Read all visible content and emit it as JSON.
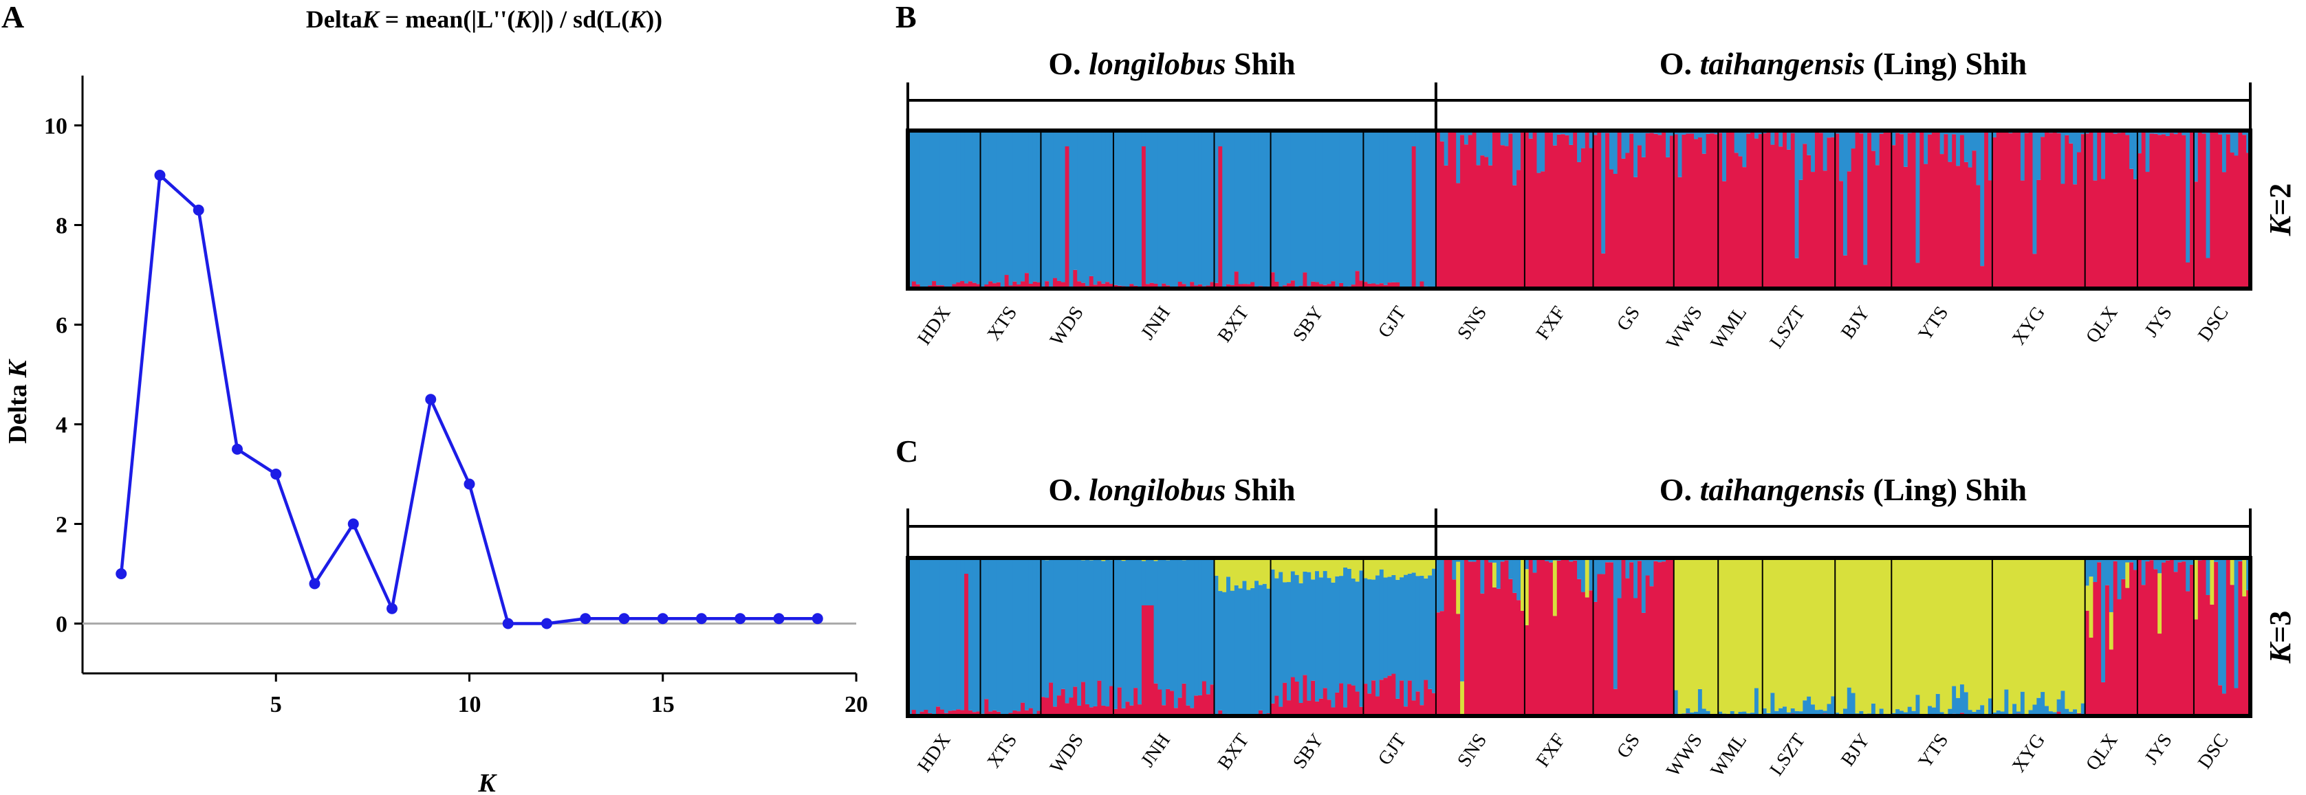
{
  "panel_letters": {
    "a": "A",
    "b": "B",
    "c": "C"
  },
  "colors": {
    "line": "#1c1ce6",
    "zero_line": "#aaaaaa",
    "blue": "#2a8fd0",
    "red": "#e2184a",
    "yellow": "#d8e03c",
    "frame": "#000000"
  },
  "chart_data": [
    {
      "type": "line",
      "panel": "A",
      "title": {
        "pre": "Delta",
        "k1": "K",
        "mid1": " = mean(|L''(",
        "k2": "K",
        "mid2": ")|) / sd(L(",
        "k3": "K",
        "post": "))"
      },
      "xlabel": "K",
      "ylabel": {
        "pre": "Delta ",
        "k": "K"
      },
      "xlim": [
        0,
        20
      ],
      "ylim": [
        -1,
        11
      ],
      "xticks": [
        5,
        10,
        15,
        20
      ],
      "yticks": [
        0,
        2,
        4,
        6,
        8,
        10
      ],
      "x": [
        1,
        2,
        3,
        4,
        5,
        6,
        7,
        8,
        9,
        10,
        11,
        12,
        13,
        14,
        15,
        16,
        17,
        18,
        19
      ],
      "y": [
        1.0,
        9.0,
        8.3,
        3.5,
        3.0,
        0.8,
        2.0,
        0.3,
        4.5,
        2.8,
        0.0,
        0.0,
        0.1,
        0.1,
        0.1,
        0.1,
        0.1,
        0.1,
        0.1
      ]
    },
    {
      "type": "stacked-bar",
      "panel": "B",
      "k_label": {
        "k": "K",
        "eq": "=2"
      },
      "clusters": 2,
      "species": [
        {
          "prefix": "O. ",
          "italic": "longilobus",
          "suffix": " Shih",
          "populations": 7
        },
        {
          "prefix": "O. ",
          "italic": "taihangensis",
          "suffix": " (Ling) Shih",
          "populations": 12
        }
      ],
      "populations": [
        {
          "name": "HDX",
          "n": 18,
          "profile": "blue"
        },
        {
          "name": "XTS",
          "n": 15,
          "profile": "blue"
        },
        {
          "name": "WDS",
          "n": 18,
          "profile": "blue"
        },
        {
          "name": "JNH",
          "n": 25,
          "profile": "blue"
        },
        {
          "name": "BXT",
          "n": 14,
          "profile": "blue"
        },
        {
          "name": "SBY",
          "n": 23,
          "profile": "blue"
        },
        {
          "name": "GJT",
          "n": 18,
          "profile": "blue"
        },
        {
          "name": "SNS",
          "n": 22,
          "profile": "red"
        },
        {
          "name": "FXF",
          "n": 17,
          "profile": "red"
        },
        {
          "name": "GS",
          "n": 20,
          "profile": "red"
        },
        {
          "name": "WWS",
          "n": 11,
          "profile": "red"
        },
        {
          "name": "WML",
          "n": 11,
          "profile": "red"
        },
        {
          "name": "LSZT",
          "n": 18,
          "profile": "red"
        },
        {
          "name": "BJY",
          "n": 14,
          "profile": "red"
        },
        {
          "name": "YTS",
          "n": 25,
          "profile": "red"
        },
        {
          "name": "XYG",
          "n": 23,
          "profile": "red"
        },
        {
          "name": "QLX",
          "n": 13,
          "profile": "red"
        },
        {
          "name": "JYS",
          "n": 14,
          "profile": "red"
        },
        {
          "name": "DSC",
          "n": 14,
          "profile": "red"
        }
      ]
    },
    {
      "type": "stacked-bar",
      "panel": "C",
      "k_label": {
        "k": "K",
        "eq": "=3"
      },
      "clusters": 3,
      "species": [
        {
          "prefix": "O. ",
          "italic": "longilobus",
          "suffix": " Shih",
          "populations": 7
        },
        {
          "prefix": "O. ",
          "italic": "taihangensis",
          "suffix": " (Ling) Shih",
          "populations": 12
        }
      ],
      "populations": [
        {
          "name": "HDX",
          "n": 18,
          "profile": "blue"
        },
        {
          "name": "XTS",
          "n": 15,
          "profile": "blue"
        },
        {
          "name": "WDS",
          "n": 18,
          "profile": "blue-red"
        },
        {
          "name": "JNH",
          "n": 25,
          "profile": "blue-red"
        },
        {
          "name": "BXT",
          "n": 14,
          "profile": "yellow-blue"
        },
        {
          "name": "SBY",
          "n": 23,
          "profile": "yellow-blue-red"
        },
        {
          "name": "GJT",
          "n": 18,
          "profile": "yellow-blue-red"
        },
        {
          "name": "SNS",
          "n": 22,
          "profile": "red"
        },
        {
          "name": "FXF",
          "n": 17,
          "profile": "red"
        },
        {
          "name": "GS",
          "n": 20,
          "profile": "red"
        },
        {
          "name": "WWS",
          "n": 11,
          "profile": "yellow"
        },
        {
          "name": "WML",
          "n": 11,
          "profile": "yellow"
        },
        {
          "name": "LSZT",
          "n": 18,
          "profile": "yellow"
        },
        {
          "name": "BJY",
          "n": 14,
          "profile": "yellow"
        },
        {
          "name": "YTS",
          "n": 25,
          "profile": "yellow"
        },
        {
          "name": "XYG",
          "n": 23,
          "profile": "yellow"
        },
        {
          "name": "QLX",
          "n": 13,
          "profile": "red"
        },
        {
          "name": "JYS",
          "n": 14,
          "profile": "red"
        },
        {
          "name": "DSC",
          "n": 14,
          "profile": "red"
        }
      ]
    }
  ]
}
